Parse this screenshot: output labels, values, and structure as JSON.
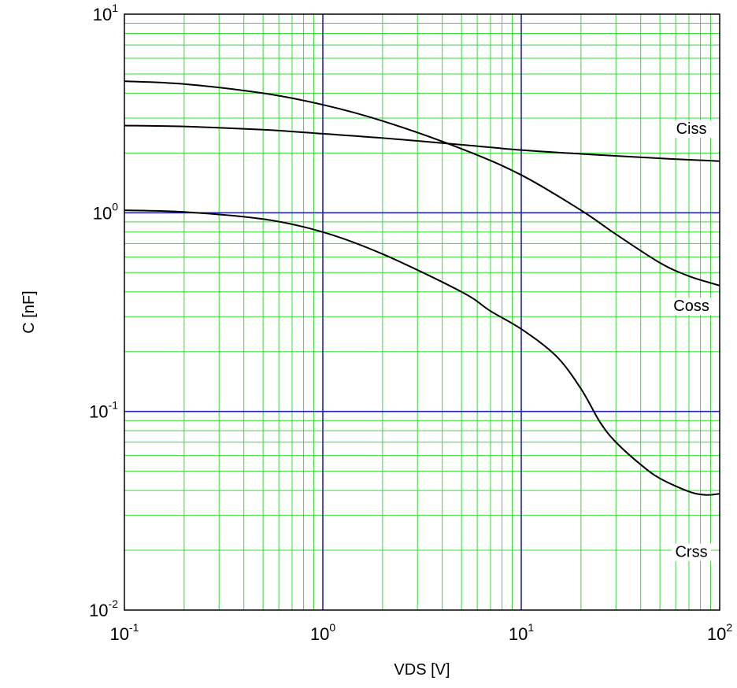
{
  "chart_data": {
    "type": "line",
    "xscale": "log",
    "yscale": "log",
    "xlabel": "VDS [V]",
    "ylabel": "C [nF]",
    "xlim": [
      0.1,
      100
    ],
    "ylim": [
      0.01,
      10
    ],
    "x_ticks": [
      {
        "base": "10",
        "exp": "-1",
        "value": 0.1
      },
      {
        "base": "10",
        "exp": "0",
        "value": 1
      },
      {
        "base": "10",
        "exp": "1",
        "value": 10
      },
      {
        "base": "10",
        "exp": "2",
        "value": 100
      }
    ],
    "y_ticks": [
      {
        "base": "10",
        "exp": "-2",
        "value": 0.01
      },
      {
        "base": "10",
        "exp": "-1",
        "value": 0.1
      },
      {
        "base": "10",
        "exp": "0",
        "value": 1
      },
      {
        "base": "10",
        "exp": "1",
        "value": 10
      }
    ],
    "grid": true,
    "colors": {
      "minor_grid": "#33dd33",
      "major_grid": "#2222bb",
      "curve": "#000000",
      "frame": "#000000"
    },
    "series": [
      {
        "name": "Ciss",
        "label_at": {
          "x": 72,
          "y": 2.5
        },
        "points": [
          [
            0.1,
            2.75
          ],
          [
            0.2,
            2.72
          ],
          [
            0.5,
            2.62
          ],
          [
            1,
            2.5
          ],
          [
            2,
            2.38
          ],
          [
            5,
            2.2
          ],
          [
            10,
            2.07
          ],
          [
            20,
            1.98
          ],
          [
            50,
            1.88
          ],
          [
            100,
            1.82
          ]
        ]
      },
      {
        "name": "Coss",
        "label_at": {
          "x": 72,
          "y": 0.32
        },
        "points": [
          [
            0.1,
            4.6
          ],
          [
            0.2,
            4.45
          ],
          [
            0.5,
            4.0
          ],
          [
            1,
            3.5
          ],
          [
            2,
            2.9
          ],
          [
            5,
            2.1
          ],
          [
            10,
            1.55
          ],
          [
            20,
            1.03
          ],
          [
            30,
            0.78
          ],
          [
            50,
            0.56
          ],
          [
            70,
            0.48
          ],
          [
            100,
            0.43
          ]
        ]
      },
      {
        "name": "Crss",
        "label_at": {
          "x": 72,
          "y": 0.0185
        },
        "points": [
          [
            0.1,
            1.03
          ],
          [
            0.2,
            1.01
          ],
          [
            0.5,
            0.93
          ],
          [
            1,
            0.8
          ],
          [
            2,
            0.62
          ],
          [
            5,
            0.4
          ],
          [
            7,
            0.32
          ],
          [
            10,
            0.26
          ],
          [
            15,
            0.19
          ],
          [
            20,
            0.13
          ],
          [
            25,
            0.088
          ],
          [
            30,
            0.07
          ],
          [
            40,
            0.054
          ],
          [
            50,
            0.046
          ],
          [
            70,
            0.0395
          ],
          [
            85,
            0.038
          ],
          [
            100,
            0.0385
          ]
        ]
      }
    ]
  }
}
